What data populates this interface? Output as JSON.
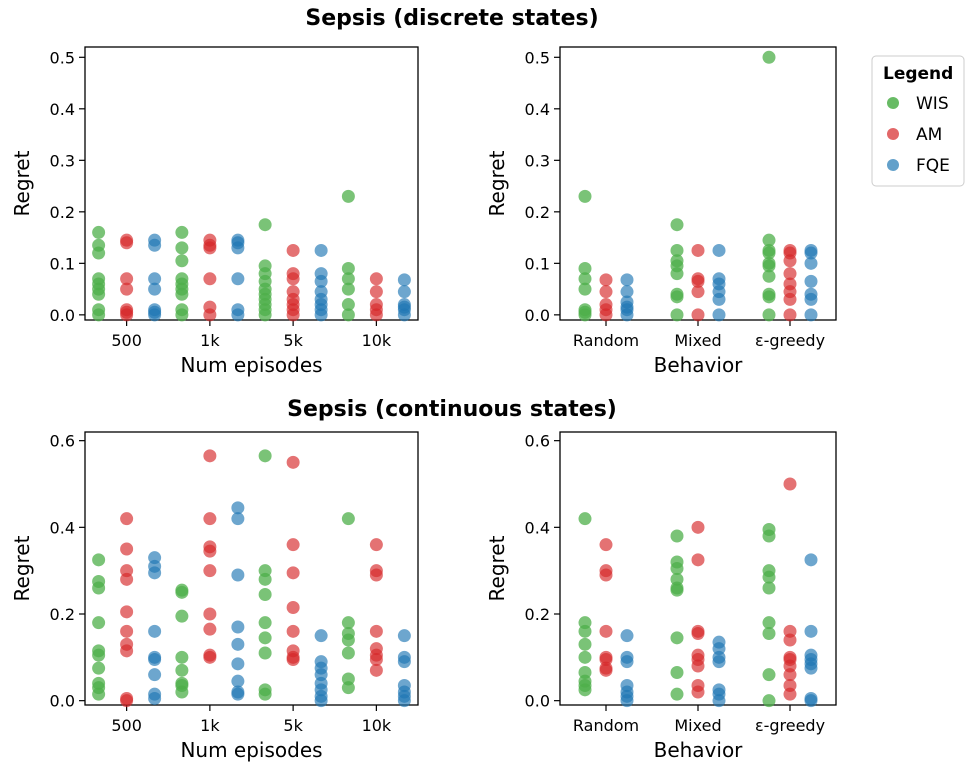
{
  "figure": {
    "titles": [
      "Sepsis (discrete states)",
      "Sepsis (continuous states)"
    ]
  },
  "legend": {
    "title": "Legend",
    "entries": [
      {
        "label": "WIS",
        "color": "#4daf4a"
      },
      {
        "label": "AM",
        "color": "#d62728"
      },
      {
        "label": "FQE",
        "color": "#1f77b4"
      }
    ]
  },
  "chart_data": [
    {
      "type": "scatter",
      "section": "Sepsis (discrete states)",
      "xlabel": "Num episodes",
      "ylabel": "Regret",
      "categories": [
        "500",
        "1k",
        "5k",
        "10k"
      ],
      "ylim": [
        -0.01,
        0.52
      ],
      "yticks": [
        0.0,
        0.1,
        0.2,
        0.3,
        0.4,
        0.5
      ],
      "ytick_labels": [
        "0.0",
        "0.1",
        "0.2",
        "0.3",
        "0.4",
        "0.5"
      ],
      "series": [
        {
          "name": "WIS",
          "values": [
            [
              0.16,
              0.135,
              0.12,
              0.07,
              0.06,
              0.05,
              0.04,
              0.01,
              0.0
            ],
            [
              0.16,
              0.13,
              0.105,
              0.07,
              0.06,
              0.05,
              0.04,
              0.01,
              0.0
            ],
            [
              0.175,
              0.095,
              0.08,
              0.065,
              0.05,
              0.04,
              0.03,
              0.02,
              0.01,
              0.0
            ],
            [
              0.23,
              0.09,
              0.07,
              0.05,
              0.02,
              0.0
            ]
          ]
        },
        {
          "name": "AM",
          "values": [
            [
              0.145,
              0.14,
              0.07,
              0.05,
              0.01,
              0.005,
              0.0
            ],
            [
              0.145,
              0.135,
              0.13,
              0.07,
              0.015,
              0.0
            ],
            [
              0.125,
              0.08,
              0.07,
              0.045,
              0.03,
              0.02,
              0.01,
              0.0
            ],
            [
              0.07,
              0.045,
              0.02,
              0.01,
              0.0
            ]
          ]
        },
        {
          "name": "FQE",
          "values": [
            [
              0.145,
              0.135,
              0.07,
              0.05,
              0.01,
              0.005,
              0.0
            ],
            [
              0.145,
              0.14,
              0.13,
              0.07,
              0.01,
              0.0
            ],
            [
              0.125,
              0.08,
              0.065,
              0.045,
              0.03,
              0.02,
              0.01,
              0.0
            ],
            [
              0.068,
              0.045,
              0.02,
              0.015,
              0.01,
              0.0
            ]
          ]
        }
      ]
    },
    {
      "type": "scatter",
      "section": "Sepsis (discrete states)",
      "xlabel": "Behavior",
      "ylabel": "Regret",
      "categories": [
        "Random",
        "Mixed",
        "ε-greedy"
      ],
      "ylim": [
        -0.01,
        0.52
      ],
      "yticks": [
        0.0,
        0.1,
        0.2,
        0.3,
        0.4,
        0.5
      ],
      "ytick_labels": [
        "0.0",
        "0.1",
        "0.2",
        "0.3",
        "0.4",
        "0.5"
      ],
      "series": [
        {
          "name": "WIS",
          "values": [
            [
              0.23,
              0.09,
              0.07,
              0.05,
              0.01,
              0.005,
              0.0
            ],
            [
              0.175,
              0.125,
              0.105,
              0.095,
              0.08,
              0.04,
              0.035,
              0.0
            ],
            [
              0.5,
              0.145,
              0.125,
              0.12,
              0.1,
              0.095,
              0.075,
              0.04,
              0.035,
              0.0
            ]
          ]
        },
        {
          "name": "AM",
          "values": [
            [
              0.068,
              0.045,
              0.02,
              0.01,
              0.0
            ],
            [
              0.125,
              0.07,
              0.065,
              0.045,
              0.0
            ],
            [
              0.125,
              0.12,
              0.105,
              0.08,
              0.06,
              0.045,
              0.03,
              0.0
            ]
          ]
        },
        {
          "name": "FQE",
          "values": [
            [
              0.068,
              0.045,
              0.025,
              0.015,
              0.01,
              0.0
            ],
            [
              0.125,
              0.07,
              0.06,
              0.045,
              0.03,
              0.0
            ],
            [
              0.125,
              0.12,
              0.1,
              0.065,
              0.04,
              0.03,
              0.0
            ]
          ]
        }
      ]
    },
    {
      "type": "scatter",
      "section": "Sepsis (continuous states)",
      "xlabel": "Num episodes",
      "ylabel": "Regret",
      "categories": [
        "500",
        "1k",
        "5k",
        "10k"
      ],
      "ylim": [
        -0.01,
        0.62
      ],
      "yticks": [
        0.0,
        0.2,
        0.4,
        0.6
      ],
      "ytick_labels": [
        "0.0",
        "0.2",
        "0.4",
        "0.6"
      ],
      "series": [
        {
          "name": "WIS",
          "values": [
            [
              0.325,
              0.275,
              0.26,
              0.18,
              0.115,
              0.105,
              0.075,
              0.04,
              0.03,
              0.015
            ],
            [
              0.255,
              0.25,
              0.195,
              0.1,
              0.07,
              0.04,
              0.035,
              0.02
            ],
            [
              0.565,
              0.3,
              0.28,
              0.245,
              0.18,
              0.145,
              0.11,
              0.025,
              0.015
            ],
            [
              0.42,
              0.18,
              0.155,
              0.14,
              0.11,
              0.05,
              0.03
            ]
          ]
        },
        {
          "name": "AM",
          "values": [
            [
              0.42,
              0.35,
              0.3,
              0.28,
              0.205,
              0.16,
              0.13,
              0.115,
              0.005,
              0.0
            ],
            [
              0.565,
              0.42,
              0.355,
              0.345,
              0.3,
              0.2,
              0.165,
              0.105,
              0.1
            ],
            [
              0.55,
              0.36,
              0.295,
              0.215,
              0.16,
              0.115,
              0.1,
              0.095
            ],
            [
              0.36,
              0.3,
              0.29,
              0.16,
              0.12,
              0.105,
              0.095,
              0.07
            ]
          ]
        },
        {
          "name": "FQE",
          "values": [
            [
              0.33,
              0.31,
              0.295,
              0.16,
              0.1,
              0.095,
              0.06,
              0.015,
              0.005
            ],
            [
              0.445,
              0.42,
              0.29,
              0.17,
              0.13,
              0.085,
              0.045,
              0.02,
              0.015
            ],
            [
              0.15,
              0.09,
              0.075,
              0.06,
              0.04,
              0.025,
              0.01,
              0.0
            ],
            [
              0.15,
              0.1,
              0.09,
              0.035,
              0.02,
              0.01,
              0.0
            ]
          ]
        }
      ]
    },
    {
      "type": "scatter",
      "section": "Sepsis (continuous states)",
      "xlabel": "Behavior",
      "ylabel": "Regret",
      "categories": [
        "Random",
        "Mixed",
        "ε-greedy"
      ],
      "ylim": [
        -0.01,
        0.62
      ],
      "yticks": [
        0.0,
        0.2,
        0.4,
        0.6
      ],
      "ytick_labels": [
        "0.0",
        "0.2",
        "0.4",
        "0.6"
      ],
      "series": [
        {
          "name": "WIS",
          "values": [
            [
              0.42,
              0.18,
              0.16,
              0.13,
              0.1,
              0.065,
              0.045,
              0.035,
              0.025
            ],
            [
              0.38,
              0.32,
              0.305,
              0.28,
              0.26,
              0.255,
              0.145,
              0.065,
              0.015
            ],
            [
              0.395,
              0.38,
              0.3,
              0.285,
              0.26,
              0.18,
              0.155,
              0.06,
              0.0
            ]
          ]
        },
        {
          "name": "AM",
          "values": [
            [
              0.36,
              0.3,
              0.29,
              0.16,
              0.1,
              0.095,
              0.075,
              0.07
            ],
            [
              0.4,
              0.325,
              0.16,
              0.155,
              0.105,
              0.095,
              0.08,
              0.035,
              0.02
            ],
            [
              0.5,
              0.16,
              0.14,
              0.1,
              0.095,
              0.08,
              0.06,
              0.035,
              0.015
            ]
          ]
        },
        {
          "name": "FQE",
          "values": [
            [
              0.15,
              0.1,
              0.09,
              0.035,
              0.02,
              0.01,
              0.0
            ],
            [
              0.135,
              0.12,
              0.1,
              0.09,
              0.025,
              0.015,
              0.0
            ],
            [
              0.325,
              0.16,
              0.105,
              0.095,
              0.085,
              0.075,
              0.005,
              0.0
            ]
          ]
        }
      ]
    }
  ]
}
